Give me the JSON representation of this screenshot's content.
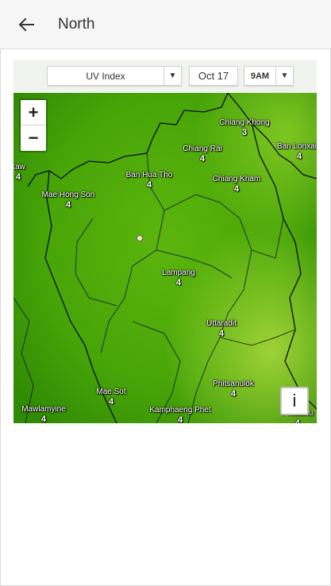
{
  "header": {
    "title": "North"
  },
  "map": {
    "layer": "UV Index",
    "date": "Oct 17",
    "time": "9AM",
    "zoom_in": "+",
    "zoom_out": "−",
    "info": "i",
    "cities": [
      {
        "name": "Chiang Khong",
        "value": "3"
      },
      {
        "name": "Chiang Rai",
        "value": "4"
      },
      {
        "name": "Ban Lonxai-I",
        "value": "4"
      },
      {
        "name": "kaw",
        "value": "4"
      },
      {
        "name": "Ban Hua Tho",
        "value": "4"
      },
      {
        "name": "Chiang Kham",
        "value": "4"
      },
      {
        "name": "Mae Hong Son",
        "value": "4"
      },
      {
        "name": "Lampang",
        "value": "4"
      },
      {
        "name": "Uttaradit",
        "value": "4"
      },
      {
        "name": "Mae Sot",
        "value": "4"
      },
      {
        "name": "Phitsanulok",
        "value": "4"
      },
      {
        "name": "Mawlamyine",
        "value": "4"
      },
      {
        "name": "Kamphaeng Phet",
        "value": "4"
      },
      {
        "name": "Phitsanu",
        "value": "4"
      }
    ]
  },
  "colors": {
    "map_green": "#3e9a06",
    "header_bg": "#f6f6f6"
  }
}
